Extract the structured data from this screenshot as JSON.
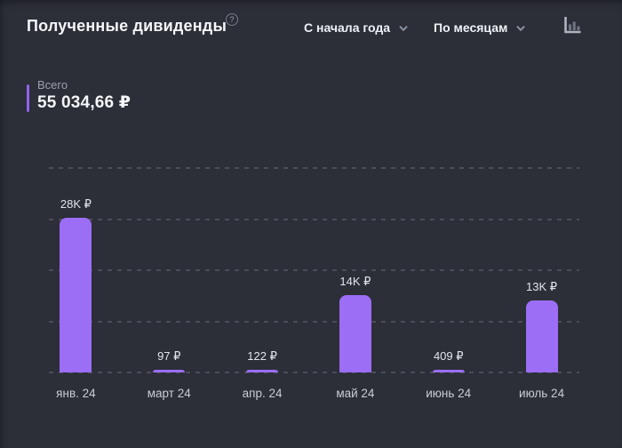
{
  "colors": {
    "background": "#2c2e38",
    "bar": "#9b6ef5",
    "accent": "#8f63ec",
    "grid_dash": "#4a4d59"
  },
  "header": {
    "title": "Полученные дивиденды",
    "help": "?",
    "period_select": {
      "value": "С начала года"
    },
    "grouping_select": {
      "value": "По месяцам"
    }
  },
  "summary": {
    "label": "Всего",
    "total": "55 034,66 ₽"
  },
  "chart_data": {
    "type": "bar",
    "title": "Полученные дивиденды",
    "categories": [
      "янв. 24",
      "март 24",
      "апр. 24",
      "май 24",
      "июнь 24",
      "июль 24"
    ],
    "values": [
      28000,
      97,
      122,
      14000,
      409,
      13000
    ],
    "value_labels": [
      "28K ₽",
      "97 ₽",
      "122 ₽",
      "14K ₽",
      "409 ₽",
      "13K ₽"
    ],
    "xlabel": "",
    "ylabel": "",
    "ylim": [
      0,
      37000
    ],
    "grid": "horizontal-dashed",
    "legend": "none",
    "currency": "₽",
    "bar_color": "#9b6ef5"
  }
}
